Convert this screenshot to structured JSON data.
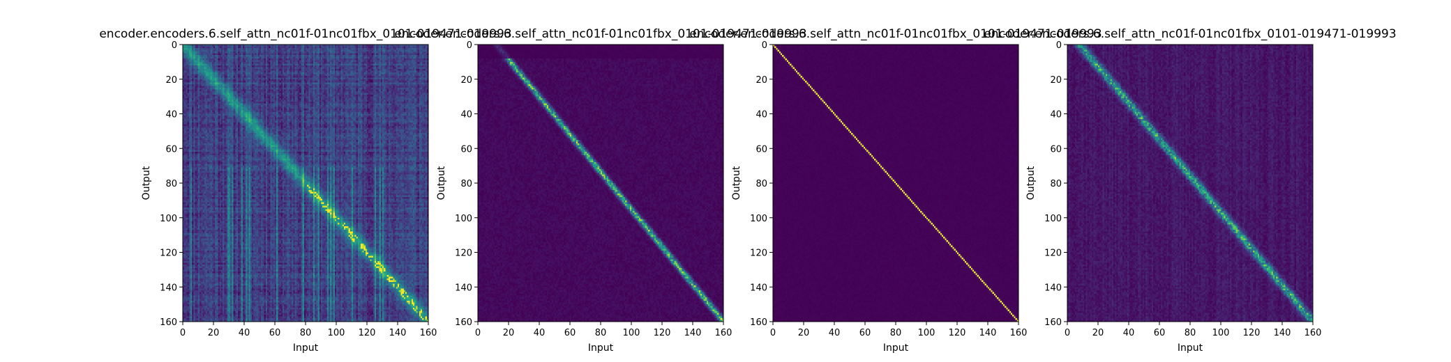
{
  "chart_data": [
    {
      "type": "heatmap",
      "title": "encoder.encoders.6.self_attn_nc01f-01nc01fbx_0101-019471-019993",
      "xlabel": "Input",
      "ylabel": "Output",
      "xlim": [
        0,
        160
      ],
      "ylim": [
        160,
        0
      ],
      "xticks": [
        "0",
        "20",
        "40",
        "60",
        "80",
        "100",
        "120",
        "140",
        "160"
      ],
      "yticks": [
        "0",
        "20",
        "40",
        "60",
        "80",
        "100",
        "120",
        "140",
        "160"
      ],
      "colormap": "viridis",
      "pattern": "diffuse",
      "seed": 11,
      "diag_offset": 0
    },
    {
      "type": "heatmap",
      "title": "encoder.encoders.6.self_attn_nc01f-01nc01fbx_0101-019471-019993",
      "xlabel": "Input",
      "ylabel": "Output",
      "xlim": [
        0,
        160
      ],
      "ylim": [
        160,
        0
      ],
      "xticks": [
        "0",
        "20",
        "40",
        "60",
        "80",
        "100",
        "120",
        "140",
        "160"
      ],
      "yticks": [
        "0",
        "20",
        "40",
        "60",
        "80",
        "100",
        "120",
        "140",
        "160"
      ],
      "colormap": "viridis",
      "pattern": "offset_diagonal",
      "seed": 23,
      "diag_offset": 12
    },
    {
      "type": "heatmap",
      "title": "encoder.encoders.6.self_attn_nc01f-01nc01fbx_0101-019471-019993",
      "xlabel": "Input",
      "ylabel": "Output",
      "xlim": [
        0,
        160
      ],
      "ylim": [
        160,
        0
      ],
      "xticks": [
        "0",
        "20",
        "40",
        "60",
        "80",
        "100",
        "120",
        "140",
        "160"
      ],
      "yticks": [
        "0",
        "20",
        "40",
        "60",
        "80",
        "100",
        "120",
        "140",
        "160"
      ],
      "colormap": "viridis",
      "pattern": "identity",
      "seed": 5,
      "diag_offset": 0
    },
    {
      "type": "heatmap",
      "title": "encoder.encoders.6.self_attn_nc01f-01nc01fbx_0101-019471-019993",
      "xlabel": "Input",
      "ylabel": "Output",
      "xlim": [
        0,
        160
      ],
      "ylim": [
        160,
        0
      ],
      "xticks": [
        "0",
        "20",
        "40",
        "60",
        "80",
        "100",
        "120",
        "140",
        "160"
      ],
      "yticks": [
        "0",
        "20",
        "40",
        "60",
        "80",
        "100",
        "120",
        "140",
        "160"
      ],
      "colormap": "viridis",
      "pattern": "sparse_diagonal",
      "seed": 37,
      "diag_offset": 8
    }
  ]
}
